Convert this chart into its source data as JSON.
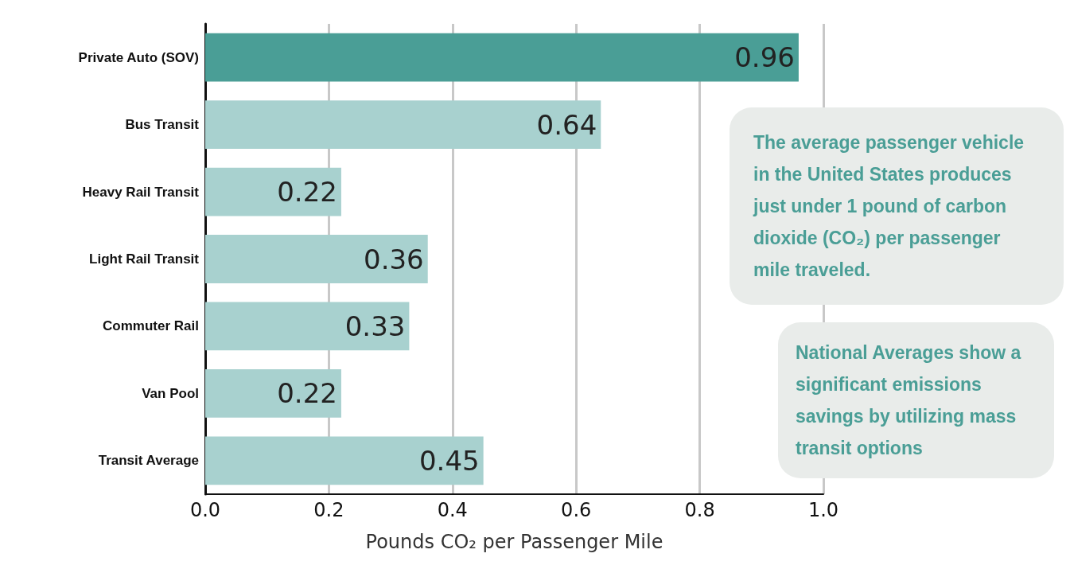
{
  "chart_data": {
    "type": "bar",
    "orientation": "horizontal",
    "categories": [
      "Private Auto (SOV)",
      "Bus Transit",
      "Heavy Rail Transit",
      "Light Rail Transit",
      "Commuter Rail",
      "Van Pool",
      "Transit Average"
    ],
    "values": [
      0.96,
      0.64,
      0.22,
      0.36,
      0.33,
      0.22,
      0.45
    ],
    "colors": [
      "#4a9e96",
      "#a8d1cf",
      "#a8d1cf",
      "#a8d1cf",
      "#a8d1cf",
      "#a8d1cf",
      "#a8d1cf"
    ],
    "data_labels": true,
    "xlim": [
      0,
      1
    ],
    "xticks": [
      {
        "value": 0,
        "label": "0.0"
      },
      {
        "value": 0.2,
        "label": "0.2"
      },
      {
        "value": 0.4,
        "label": "0.4"
      },
      {
        "value": 0.6,
        "label": "0.6"
      },
      {
        "value": 0.8,
        "label": "0.8"
      },
      {
        "value": 1,
        "label": "1.0"
      }
    ],
    "xlabel": "Pounds CO₂ per Passenger Mile",
    "grid": "x",
    "annotations": [
      "The average passenger vehicle in the United States produces just under 1 pound of carbon dioxide (CO₂) per passenger mile traveled.",
      "National Averages show a significant emissions savings by utilizing mass transit options"
    ]
  }
}
